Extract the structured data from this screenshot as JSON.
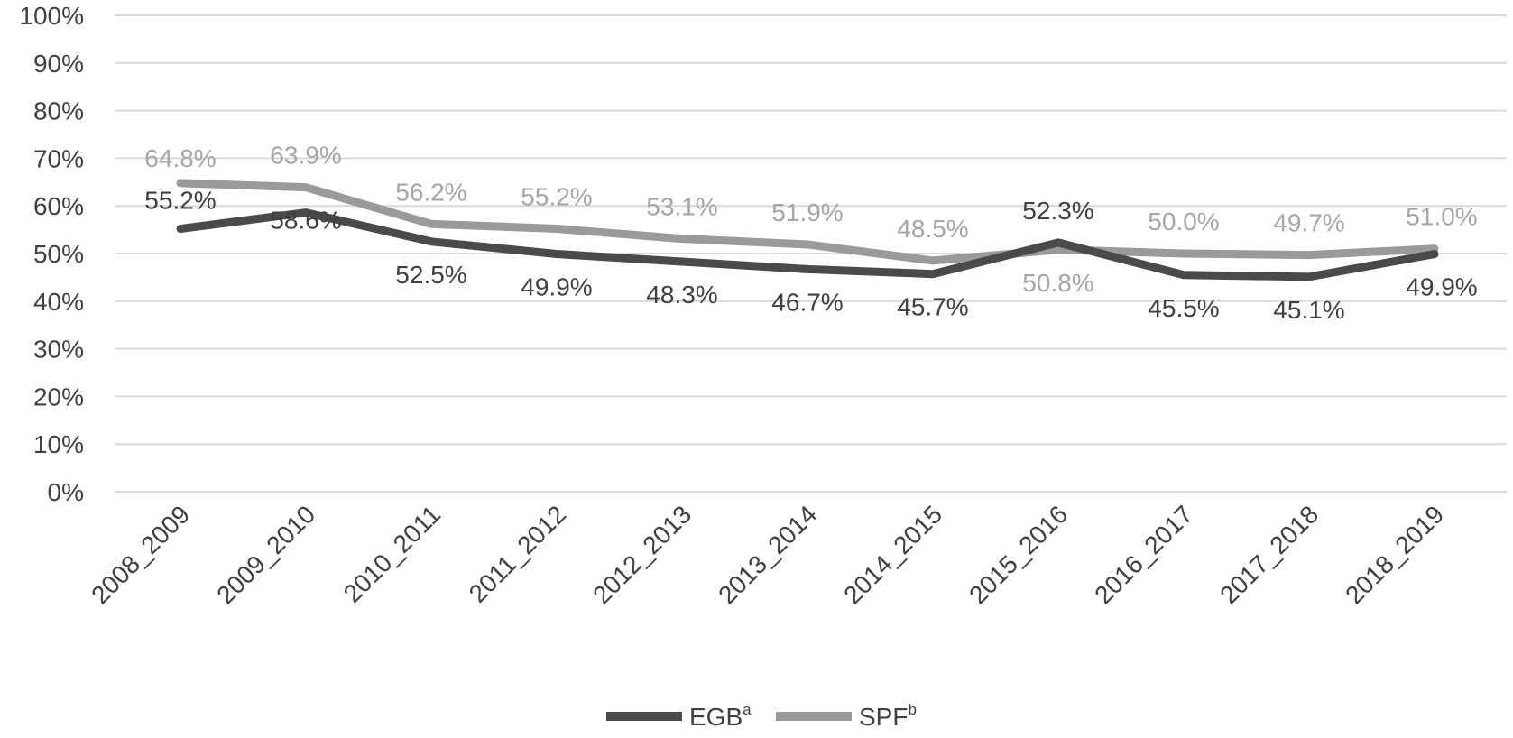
{
  "chart_data": {
    "type": "line",
    "title": "",
    "xlabel": "",
    "ylabel": "",
    "ylim": [
      0,
      100
    ],
    "y_ticks": [
      "0%",
      "10%",
      "20%",
      "30%",
      "40%",
      "50%",
      "60%",
      "70%",
      "80%",
      "90%",
      "100%"
    ],
    "grid": true,
    "legend_position": "bottom",
    "categories": [
      "2008_2009",
      "2009_2010",
      "2010_2011",
      "2011_2012",
      "2012_2013",
      "2013_2014",
      "2014_2015",
      "2015_2016",
      "2016_2017",
      "2017_2018",
      "2018_2019"
    ],
    "series": [
      {
        "name": "EGB",
        "name_superscript": "a",
        "color": "#4a4a4a",
        "values": [
          55.2,
          58.6,
          52.5,
          49.9,
          48.3,
          46.7,
          45.7,
          52.3,
          45.5,
          45.1,
          49.9
        ],
        "labels": [
          "55.2%",
          "58.6%",
          "52.5%",
          "49.9%",
          "48.3%",
          "46.7%",
          "45.7%",
          "52.3%",
          "45.5%",
          "45.1%",
          "49.9%"
        ]
      },
      {
        "name": "SPF",
        "name_superscript": "b",
        "color": "#9a9a9a",
        "values": [
          64.8,
          63.9,
          56.2,
          55.2,
          53.1,
          51.9,
          48.5,
          50.8,
          50.0,
          49.7,
          51.0
        ],
        "labels": [
          "64.8%",
          "63.9%",
          "56.2%",
          "55.2%",
          "53.1%",
          "51.9%",
          "48.5%",
          "50.8%",
          "50.0%",
          "49.7%",
          "51.0%"
        ]
      }
    ]
  }
}
